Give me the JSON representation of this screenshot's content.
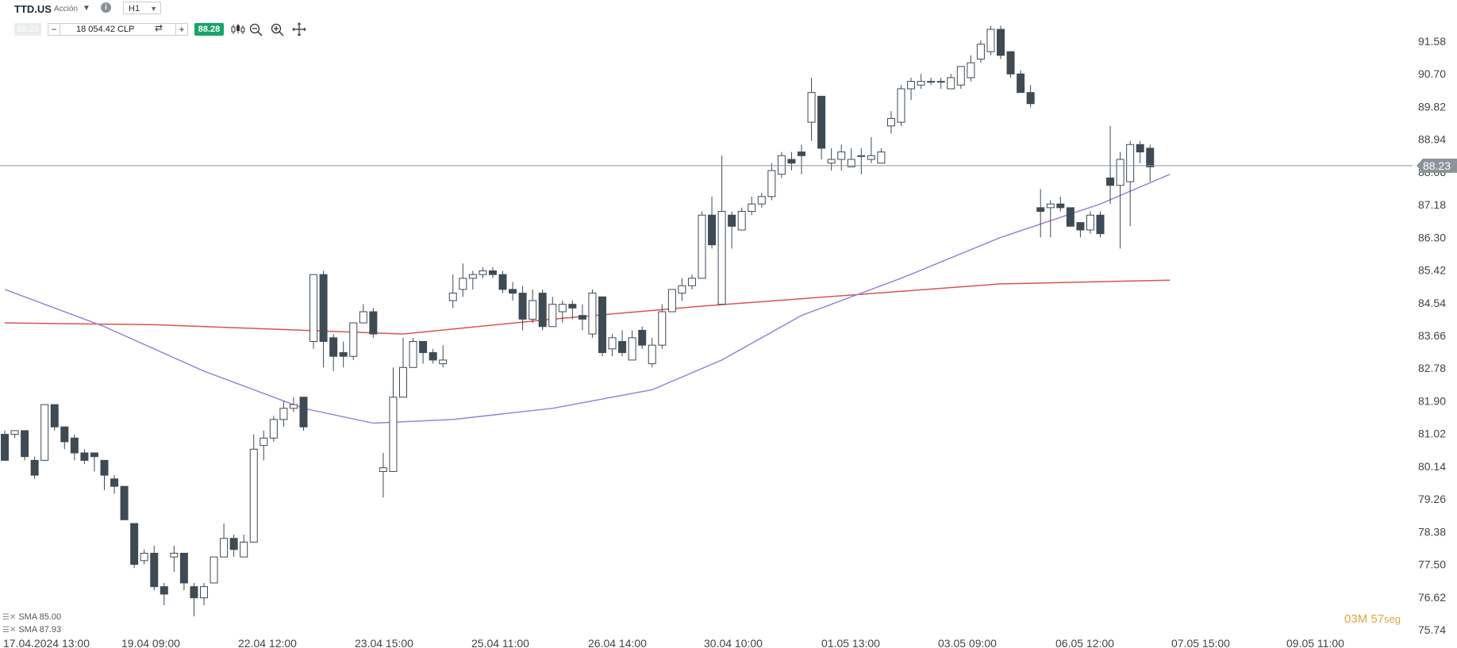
{
  "header": {
    "symbol": "TTD.US",
    "instrument_type": "Acción",
    "timeframe": "H1",
    "sell_price": "88.23",
    "amount": "18 054.42 CLP",
    "buy_price": "88.28"
  },
  "toolbar": {
    "icons": [
      "chart-type-icon",
      "zoom-out-icon",
      "zoom-in-icon",
      "crosshair-icon"
    ]
  },
  "current_price_label": "88.23",
  "legend": {
    "sma1": "SMA 85.00",
    "sma2": "SMA 87.93"
  },
  "timer": {
    "minutes": "03",
    "minutes_unit": "M",
    "seconds": "57",
    "seconds_unit": "seg"
  },
  "colors": {
    "bull": "#ffffff",
    "bear": "#3e4a54",
    "sma_slow": "#d9534f",
    "sma_fast": "#9b82d8",
    "buy": "#1aa36b",
    "timer": "#e8a33c"
  },
  "chart_data": {
    "type": "candlestick",
    "symbol": "TTD.US",
    "timeframe": "H1",
    "y_ticks": [
      "91.58",
      "90.70",
      "89.82",
      "88.94",
      "88.06",
      "87.18",
      "86.30",
      "85.42",
      "84.54",
      "83.66",
      "82.78",
      "81.90",
      "81.02",
      "80.14",
      "79.26",
      "78.38",
      "77.50",
      "76.62",
      "75.74"
    ],
    "ylim": [
      75.74,
      91.58
    ],
    "x_ticks": [
      "17.04.2024 13:00",
      "19.04 09:00",
      "22.04 12:00",
      "23.04 15:00",
      "25.04 11:00",
      "26.04 14:00",
      "30.04 10:00",
      "01.05 13:00",
      "03.05 09:00",
      "06.05 12:00",
      "07.05 15:00",
      "09.05 11:00"
    ],
    "current_price": 88.23,
    "candles": [
      [
        81.0,
        80.3,
        81.1,
        80.3
      ],
      [
        81.0,
        81.1,
        81.1,
        80.9
      ],
      [
        81.1,
        80.4,
        81.1,
        80.3
      ],
      [
        80.3,
        79.9,
        80.4,
        79.8
      ],
      [
        80.3,
        81.8,
        81.8,
        80.3
      ],
      [
        81.8,
        81.2,
        81.8,
        81.1
      ],
      [
        81.2,
        80.8,
        81.2,
        80.6
      ],
      [
        80.9,
        80.5,
        81.0,
        80.3
      ],
      [
        80.5,
        80.3,
        80.6,
        80.2
      ],
      [
        80.5,
        80.4,
        80.5,
        80.0
      ],
      [
        80.3,
        79.9,
        80.3,
        79.5
      ],
      [
        79.8,
        79.6,
        79.9,
        79.4
      ],
      [
        79.6,
        78.7,
        79.6,
        78.7
      ],
      [
        78.6,
        77.5,
        78.6,
        77.4
      ],
      [
        77.6,
        77.8,
        77.9,
        77.5
      ],
      [
        77.8,
        76.9,
        78.0,
        76.8
      ],
      [
        76.9,
        76.7,
        77.0,
        76.4
      ],
      [
        77.7,
        77.8,
        78.0,
        77.3
      ],
      [
        77.8,
        77.0,
        77.8,
        76.8
      ],
      [
        76.9,
        76.6,
        77.0,
        76.1
      ],
      [
        76.6,
        76.9,
        77.0,
        76.4
      ],
      [
        77.0,
        77.7,
        77.7,
        77.1
      ],
      [
        77.7,
        78.2,
        78.6,
        77.7
      ],
      [
        78.2,
        77.9,
        78.3,
        77.7
      ],
      [
        77.7,
        78.1,
        78.3,
        77.7
      ],
      [
        78.1,
        80.6,
        81.0,
        78.1
      ],
      [
        80.7,
        80.9,
        81.1,
        80.3
      ],
      [
        80.9,
        81.4,
        81.5,
        80.8
      ],
      [
        81.4,
        81.7,
        81.9,
        81.2
      ],
      [
        81.7,
        81.8,
        82.0,
        81.6
      ],
      [
        82.0,
        81.2,
        82.0,
        81.1
      ],
      [
        83.5,
        85.3,
        85.3,
        83.3
      ],
      [
        85.3,
        83.5,
        85.4,
        82.8
      ],
      [
        83.6,
        83.1,
        83.7,
        82.7
      ],
      [
        83.2,
        83.1,
        83.5,
        82.8
      ],
      [
        83.1,
        84.0,
        84.0,
        83.0
      ],
      [
        84.0,
        84.3,
        84.5,
        84.0
      ],
      [
        84.3,
        83.7,
        84.4,
        83.6
      ],
      [
        80.0,
        80.1,
        80.5,
        79.3
      ],
      [
        80.0,
        82.0,
        82.8,
        80.0
      ],
      [
        82.0,
        82.8,
        83.6,
        82.2
      ],
      [
        82.8,
        83.5,
        83.6,
        82.8
      ],
      [
        83.5,
        83.2,
        83.5,
        82.9
      ],
      [
        83.2,
        83.0,
        83.3,
        82.9
      ],
      [
        82.9,
        83.0,
        83.4,
        82.8
      ],
      [
        84.6,
        84.8,
        85.3,
        84.4
      ],
      [
        84.9,
        85.2,
        85.6,
        84.7
      ],
      [
        85.2,
        85.3,
        85.4,
        84.9
      ],
      [
        85.3,
        85.4,
        85.5,
        85.2
      ],
      [
        85.4,
        85.3,
        85.5,
        85.2
      ],
      [
        85.3,
        84.9,
        85.4,
        84.8
      ],
      [
        84.9,
        84.8,
        85.1,
        84.6
      ],
      [
        84.8,
        84.1,
        85.0,
        83.8
      ],
      [
        84.1,
        84.6,
        84.9,
        84.0
      ],
      [
        84.8,
        83.9,
        84.9,
        83.8
      ],
      [
        83.9,
        84.5,
        84.7,
        83.9
      ],
      [
        84.3,
        84.5,
        84.6,
        84.0
      ],
      [
        84.5,
        84.4,
        84.6,
        84.1
      ],
      [
        84.2,
        84.1,
        84.5,
        83.8
      ],
      [
        83.7,
        84.8,
        84.9,
        83.6
      ],
      [
        84.7,
        83.2,
        84.7,
        83.1
      ],
      [
        83.3,
        83.6,
        83.7,
        83.1
      ],
      [
        83.5,
        83.2,
        83.8,
        83.1
      ],
      [
        83.0,
        83.6,
        83.8,
        83.0
      ],
      [
        83.8,
        83.4,
        83.9,
        83.3
      ],
      [
        82.9,
        83.4,
        83.6,
        82.8
      ],
      [
        83.4,
        84.3,
        84.5,
        83.3
      ],
      [
        84.3,
        84.9,
        84.9,
        84.3
      ],
      [
        84.8,
        85.0,
        85.2,
        84.6
      ],
      [
        85.0,
        85.2,
        85.3,
        84.9
      ],
      [
        85.2,
        86.9,
        87.0,
        85.3
      ],
      [
        86.9,
        86.1,
        87.4,
        86.0
      ],
      [
        84.5,
        87.0,
        88.5,
        84.5
      ],
      [
        86.9,
        86.6,
        87.0,
        86.0
      ],
      [
        86.5,
        87.0,
        87.1,
        86.6
      ],
      [
        87.0,
        87.2,
        87.4,
        86.9
      ],
      [
        87.2,
        87.4,
        87.5,
        87.1
      ],
      [
        87.4,
        88.1,
        88.3,
        87.3
      ],
      [
        88.0,
        88.5,
        88.6,
        87.9
      ],
      [
        88.4,
        88.3,
        88.6,
        88.1
      ],
      [
        88.6,
        88.5,
        88.8,
        88.0
      ],
      [
        89.4,
        90.2,
        90.6,
        88.9
      ],
      [
        90.1,
        88.7,
        90.1,
        88.4
      ],
      [
        88.3,
        88.4,
        88.7,
        88.1
      ],
      [
        88.4,
        88.6,
        88.8,
        88.1
      ],
      [
        88.2,
        88.4,
        88.7,
        88.2
      ],
      [
        88.5,
        88.5,
        88.7,
        88.0
      ],
      [
        88.4,
        88.5,
        89.0,
        88.3
      ],
      [
        88.3,
        88.6,
        88.7,
        88.3
      ],
      [
        89.3,
        89.5,
        89.7,
        89.1
      ],
      [
        89.4,
        90.3,
        90.4,
        89.3
      ],
      [
        90.3,
        90.5,
        90.6,
        90.0
      ],
      [
        90.4,
        90.5,
        90.7,
        90.3
      ],
      [
        90.5,
        90.5,
        90.6,
        90.4
      ],
      [
        90.5,
        90.5,
        90.6,
        90.3
      ],
      [
        90.3,
        90.6,
        90.7,
        90.3
      ],
      [
        90.4,
        90.9,
        90.9,
        90.3
      ],
      [
        90.6,
        91.0,
        91.2,
        90.5
      ],
      [
        91.1,
        91.5,
        91.6,
        91.0
      ],
      [
        91.3,
        91.9,
        92.0,
        91.2
      ],
      [
        91.9,
        91.2,
        92.0,
        91.1
      ],
      [
        91.3,
        90.7,
        91.3,
        90.6
      ],
      [
        90.7,
        90.2,
        90.8,
        90.2
      ],
      [
        90.2,
        89.9,
        90.4,
        89.8
      ],
      [
        87.1,
        87.0,
        87.6,
        86.3
      ],
      [
        87.1,
        87.2,
        87.3,
        86.3
      ],
      [
        87.2,
        87.1,
        87.4,
        87.0
      ],
      [
        87.1,
        86.6,
        87.1,
        86.6
      ],
      [
        86.7,
        86.5,
        86.7,
        86.3
      ],
      [
        86.5,
        86.9,
        87.0,
        86.4
      ],
      [
        86.9,
        86.4,
        87.0,
        86.3
      ],
      [
        87.9,
        87.7,
        89.3,
        87.2
      ],
      [
        87.7,
        88.4,
        88.6,
        86.0
      ],
      [
        87.8,
        88.8,
        88.9,
        86.6
      ],
      [
        88.8,
        88.6,
        88.9,
        88.3
      ],
      [
        88.7,
        88.2,
        88.8,
        87.8
      ]
    ],
    "series": [
      {
        "name": "SMA 85.00",
        "color": "#d9534f",
        "values": [
          [
            0,
            84.0
          ],
          [
            15,
            83.95
          ],
          [
            40,
            83.7
          ],
          [
            55,
            84.1
          ],
          [
            70,
            84.45
          ],
          [
            85,
            84.75
          ],
          [
            100,
            85.05
          ],
          [
            117,
            85.15
          ]
        ]
      },
      {
        "name": "SMA 87.93",
        "color": "#9b82d8",
        "values": [
          [
            0,
            84.9
          ],
          [
            10,
            83.9
          ],
          [
            20,
            82.7
          ],
          [
            30,
            81.7
          ],
          [
            37,
            81.3
          ],
          [
            45,
            81.4
          ],
          [
            55,
            81.7
          ],
          [
            65,
            82.2
          ],
          [
            72,
            83.0
          ],
          [
            80,
            84.2
          ],
          [
            90,
            85.2
          ],
          [
            100,
            86.3
          ],
          [
            110,
            87.2
          ],
          [
            117,
            88.0
          ]
        ]
      }
    ]
  }
}
